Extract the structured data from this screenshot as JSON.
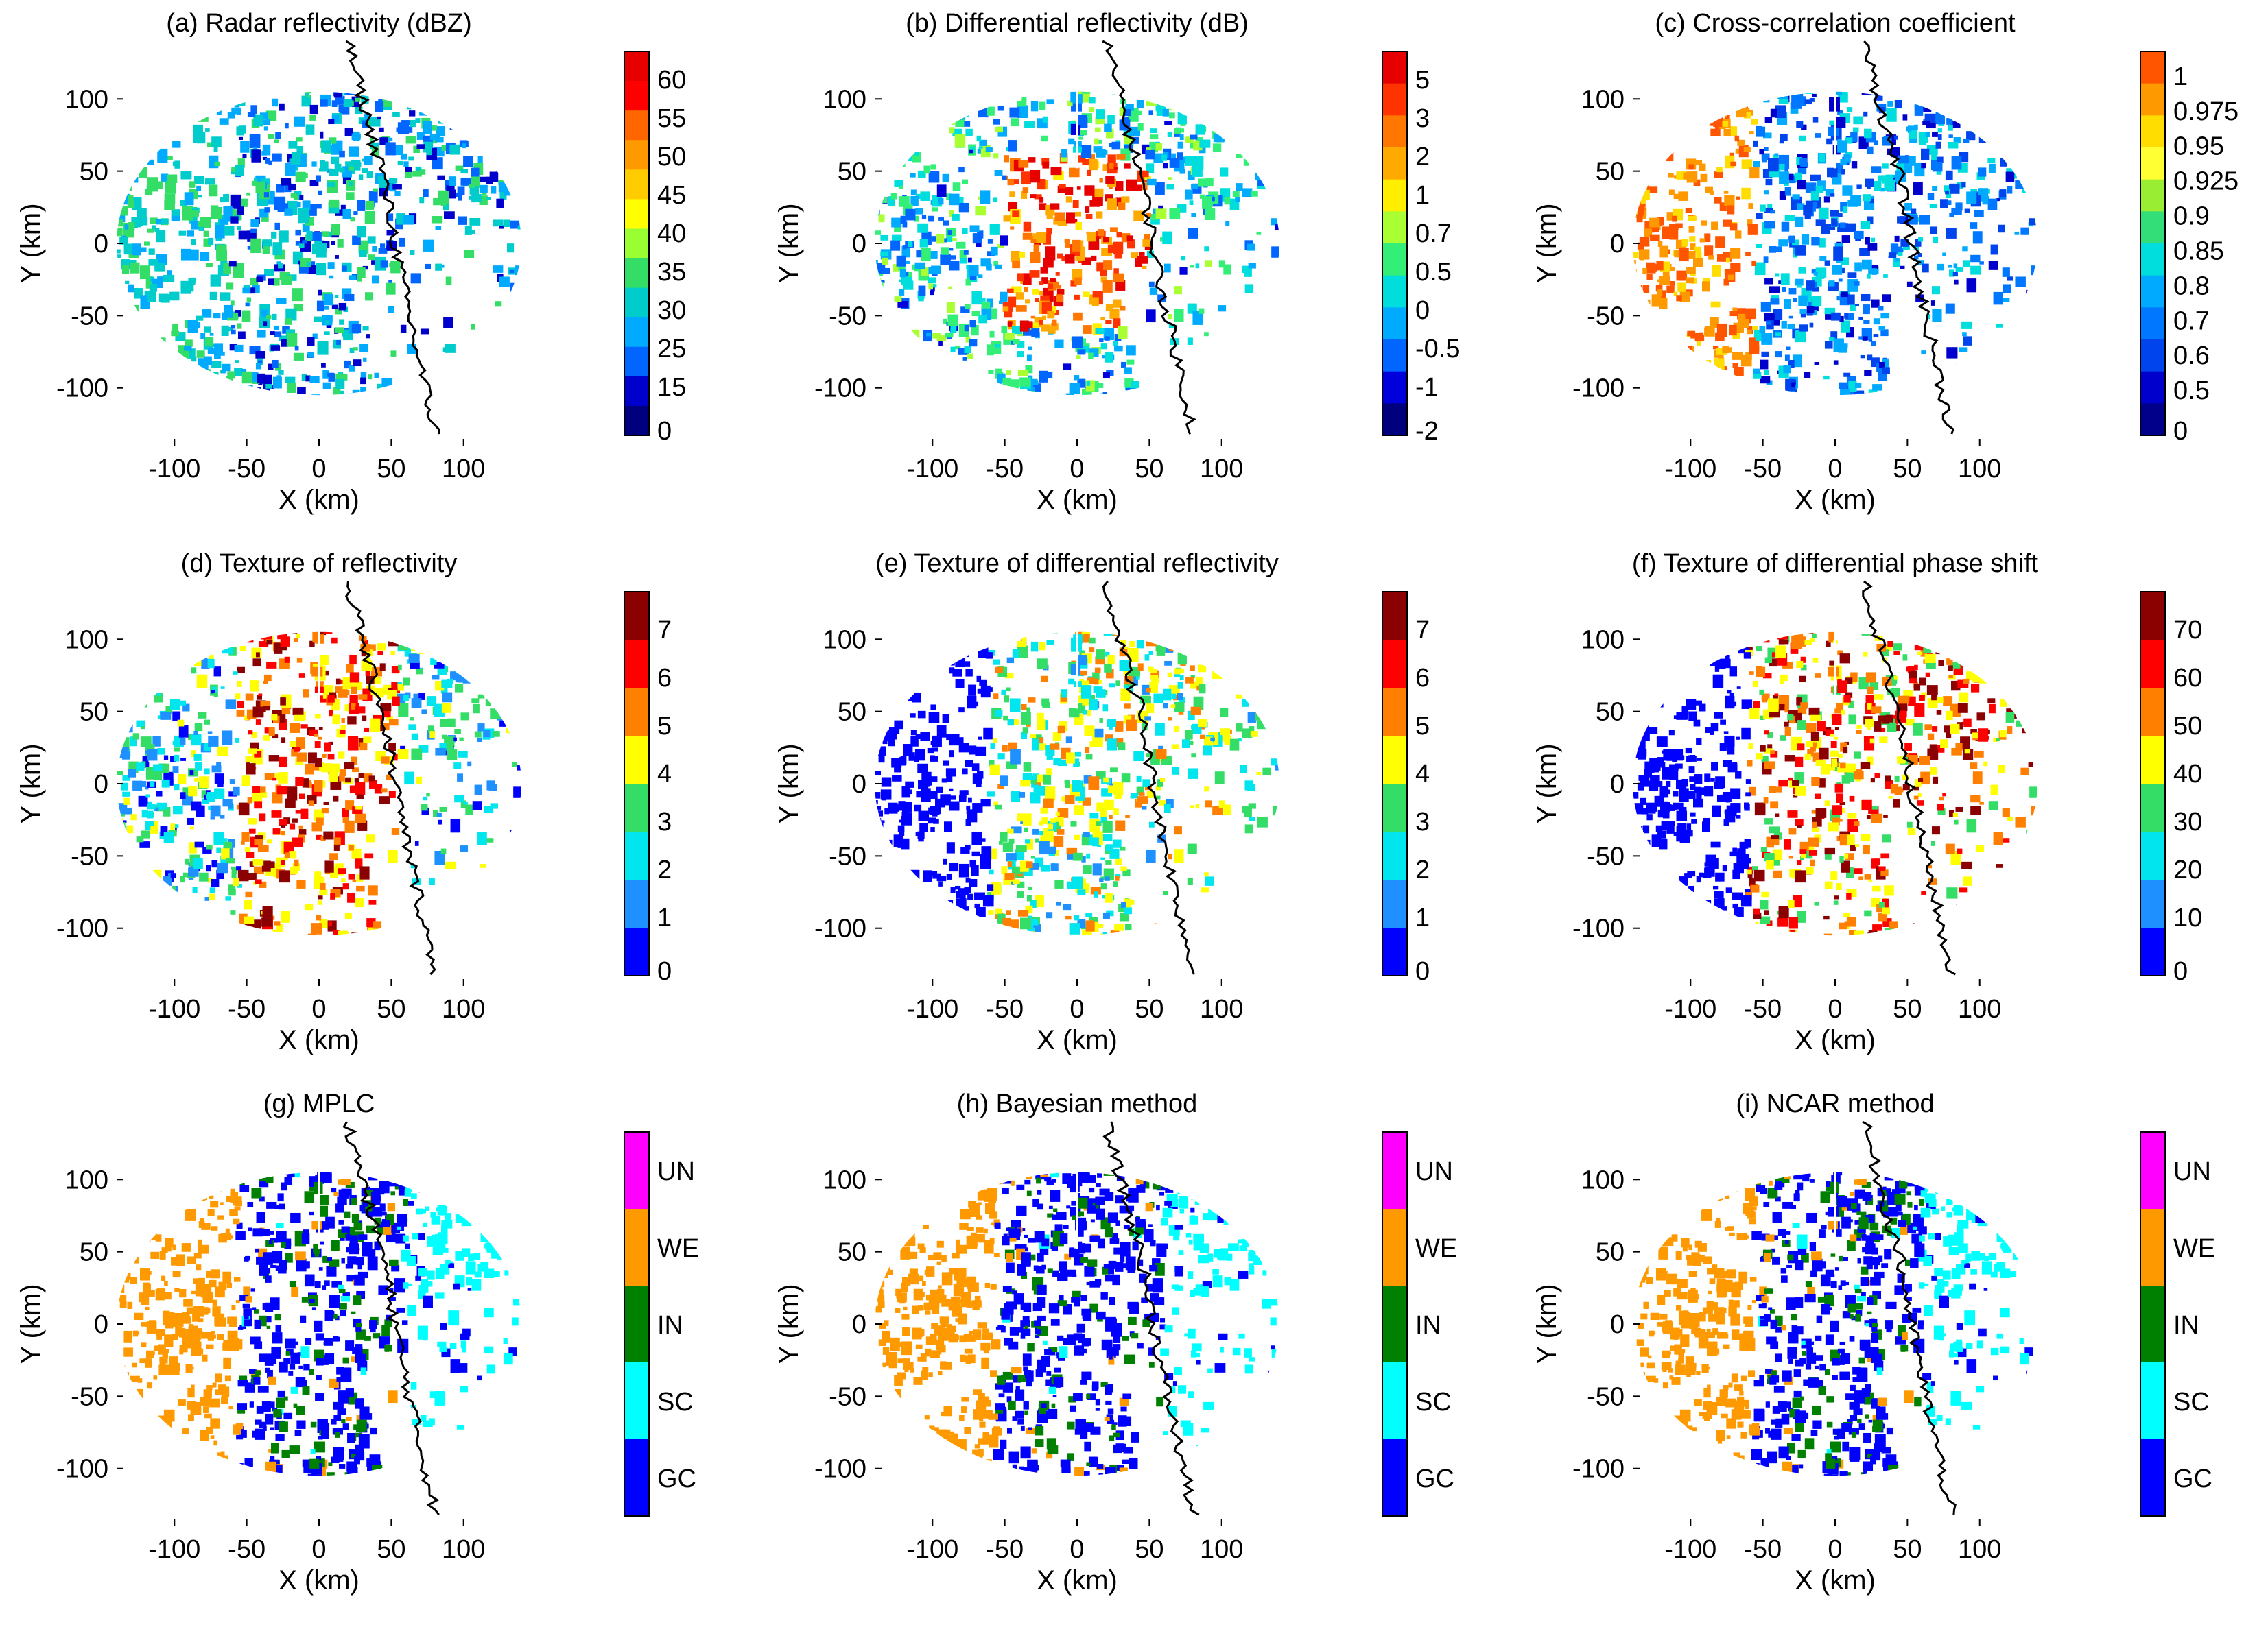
{
  "figure": {
    "panels": [
      {
        "id": "a",
        "title": "(a) Radar reflectivity (dBZ)",
        "colorbar_type": "continuous",
        "colorbar_labels": [
          "60",
          "55",
          "50",
          "45",
          "40",
          "35",
          "30",
          "25",
          "15",
          "0"
        ],
        "colorbar_colors": [
          "#e60000",
          "#ff0000",
          "#ff6600",
          "#ff9900",
          "#ffcc00",
          "#ffff00",
          "#99ff33",
          "#33dd66",
          "#00cccc",
          "#00aaff",
          "#0066ff",
          "#0000cc",
          "#00007f"
        ]
      },
      {
        "id": "b",
        "title": "(b) Differential reflectivity (dB)",
        "colorbar_type": "continuous",
        "colorbar_labels": [
          "5",
          "3",
          "2",
          "1",
          "0.7",
          "0.5",
          "0",
          "-0.5",
          "-1",
          "-2"
        ],
        "colorbar_colors": [
          "#e60000",
          "#ff3300",
          "#ff7700",
          "#ffaa00",
          "#ffee00",
          "#aaff33",
          "#33ee77",
          "#00dddd",
          "#00aaff",
          "#0066ff",
          "#0000dd",
          "#00007f"
        ]
      },
      {
        "id": "c",
        "title": "(c) Cross-correlation coefficient",
        "colorbar_type": "continuous",
        "colorbar_labels": [
          "1",
          "0.975",
          "0.95",
          "0.925",
          "0.9",
          "0.85",
          "0.8",
          "0.7",
          "0.6",
          "0.5",
          "0"
        ],
        "colorbar_colors": [
          "#ff5500",
          "#ff9900",
          "#ffdd00",
          "#ffff33",
          "#99ee33",
          "#33dd77",
          "#00dddd",
          "#00aaff",
          "#0077ff",
          "#0044ee",
          "#0000cc",
          "#00008b"
        ]
      },
      {
        "id": "d",
        "title": "(d) Texture of reflectivity",
        "colorbar_type": "continuous",
        "colorbar_labels": [
          "7",
          "6",
          "5",
          "4",
          "3",
          "2",
          "1",
          "0"
        ],
        "colorbar_colors": [
          "#8b0000",
          "#ff0000",
          "#ff7f00",
          "#ffff00",
          "#33dd66",
          "#00e5ee",
          "#1e90ff",
          "#0000ff"
        ]
      },
      {
        "id": "e",
        "title": "(e) Texture of differential reflectivity",
        "colorbar_type": "continuous",
        "colorbar_labels": [
          "7",
          "6",
          "5",
          "4",
          "3",
          "2",
          "1",
          "0"
        ],
        "colorbar_colors": [
          "#8b0000",
          "#ff0000",
          "#ff7f00",
          "#ffff00",
          "#33dd66",
          "#00e5ee",
          "#1e90ff",
          "#0000ff"
        ]
      },
      {
        "id": "f",
        "title": "(f) Texture of differential phase shift",
        "colorbar_type": "continuous",
        "colorbar_labels": [
          "70",
          "60",
          "50",
          "40",
          "30",
          "20",
          "10",
          "0"
        ],
        "colorbar_colors": [
          "#8b0000",
          "#ff0000",
          "#ff7f00",
          "#ffff00",
          "#33dd66",
          "#00e5ee",
          "#1e90ff",
          "#0000ff"
        ]
      },
      {
        "id": "g",
        "title": "(g) MPLC",
        "colorbar_type": "categorical",
        "colorbar_labels": [
          "UN",
          "WE",
          "IN",
          "SC",
          "GC"
        ],
        "colorbar_colors": [
          "#ff00ff",
          "#ff9900",
          "#008000",
          "#00ffff",
          "#0000ff"
        ]
      },
      {
        "id": "h",
        "title": "(h) Bayesian method",
        "colorbar_type": "categorical",
        "colorbar_labels": [
          "UN",
          "WE",
          "IN",
          "SC",
          "GC"
        ],
        "colorbar_colors": [
          "#ff00ff",
          "#ff9900",
          "#008000",
          "#00ffff",
          "#0000ff"
        ]
      },
      {
        "id": "i",
        "title": "(i) NCAR method",
        "colorbar_type": "categorical",
        "colorbar_labels": [
          "UN",
          "WE",
          "IN",
          "SC",
          "GC"
        ],
        "colorbar_colors": [
          "#ff00ff",
          "#ff9900",
          "#008000",
          "#00ffff",
          "#0000ff"
        ]
      }
    ]
  },
  "chart_data": {
    "type": "heatmap",
    "description_grid": "3x3 panels of radar PPI fields",
    "xlabel": "X (km)",
    "ylabel": "Y (km)",
    "xlim": [
      -140,
      140
    ],
    "ylim": [
      -140,
      140
    ],
    "xticks": [
      -100,
      -50,
      0,
      50,
      100
    ],
    "yticks": [
      -100,
      -50,
      0,
      50,
      100
    ],
    "xtick_labels": [
      "-100",
      "-50",
      "0",
      "50",
      "100"
    ],
    "ytick_labels": [
      "-100",
      "-50",
      "0",
      "50",
      "100"
    ],
    "classes": [
      "UN",
      "WE",
      "IN",
      "SC",
      "GC"
    ],
    "class_colors": {
      "UN": "#ff00ff",
      "WE": "#ff9900",
      "IN": "#008000",
      "SC": "#00ffff",
      "GC": "#0000ff"
    }
  }
}
